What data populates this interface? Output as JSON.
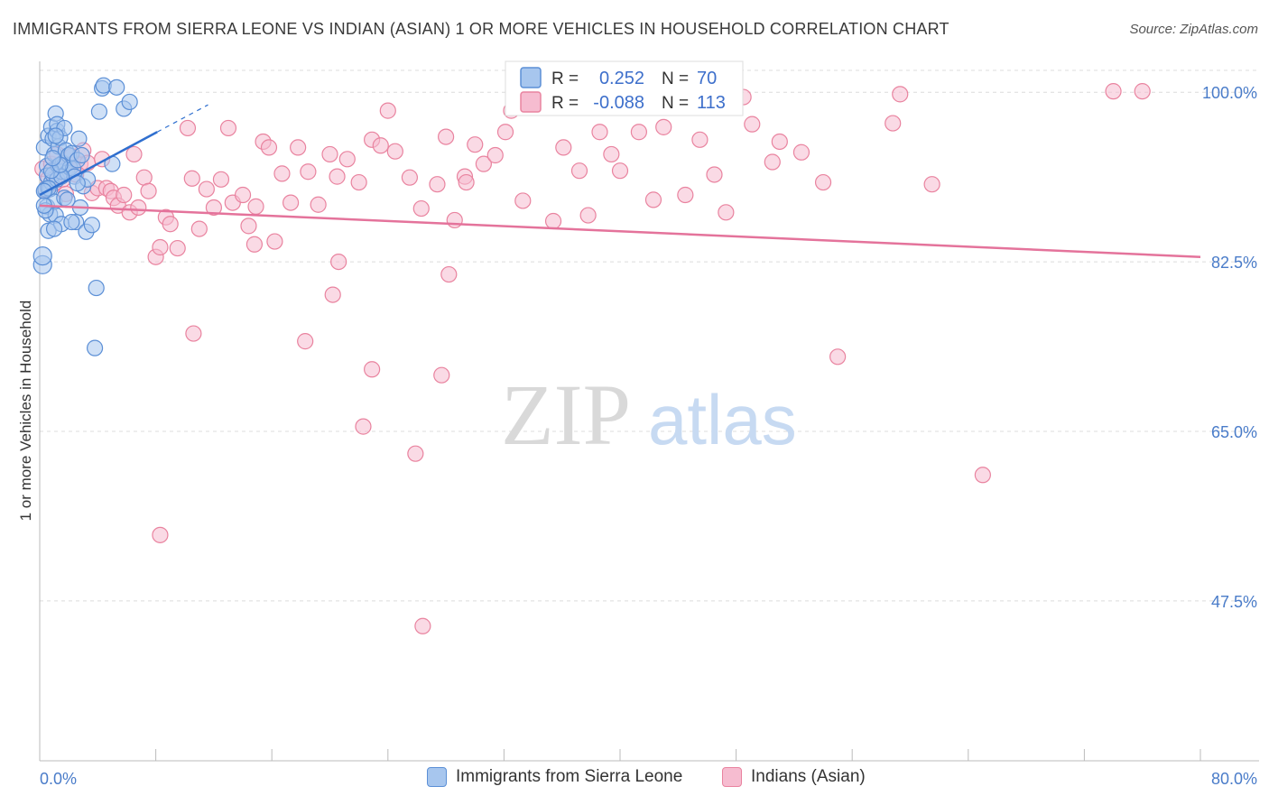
{
  "header": {
    "title": "IMMIGRANTS FROM SIERRA LEONE VS INDIAN (ASIAN) 1 OR MORE VEHICLES IN HOUSEHOLD CORRELATION CHART",
    "source": "Source: ZipAtlas.com"
  },
  "watermark": {
    "zip": "ZIP",
    "atlas": "atlas"
  },
  "colors": {
    "blue_fill": "#a7c6ee",
    "blue_stroke": "#5b8fd6",
    "blue_line": "#2f6fcf",
    "pink_fill": "#f6bcd0",
    "pink_stroke": "#e9839f",
    "pink_line": "#e4739b",
    "axis_text": "#4a7cc9"
  },
  "legend_box": {
    "rows": [
      {
        "r_label": "R =",
        "r_value": "0.252",
        "n_label": "N =",
        "n_value": "70"
      },
      {
        "r_label": "R =",
        "r_value": "-0.088",
        "n_label": "N =",
        "n_value": "113"
      }
    ]
  },
  "chart_data": {
    "type": "scatter",
    "title": "IMMIGRANTS FROM SIERRA LEONE VS INDIAN (ASIAN) 1 OR MORE VEHICLES IN HOUSEHOLD CORRELATION CHART",
    "xlabel": "",
    "ylabel": "1 or more Vehicles in Household",
    "xlim": [
      0,
      80
    ],
    "ylim": [
      31,
      103
    ],
    "x_tick_labels": [
      "0.0%",
      "80.0%"
    ],
    "y_ticks": [
      47.5,
      65.0,
      82.5,
      100.0
    ],
    "y_tick_labels": [
      "47.5%",
      "65.0%",
      "82.5%",
      "100.0%"
    ],
    "grid": true,
    "legend": [
      "Immigrants from Sierra Leone",
      "Indians (Asian)"
    ],
    "series": [
      {
        "name": "Immigrants from Sierra Leone",
        "color": "blue",
        "R": 0.252,
        "N": 70,
        "trend": {
          "x0": 0,
          "y0": 89.4,
          "x1": 8.1,
          "y1": 95.9,
          "dash_to_x": 11.6,
          "dash_to_y": 98.7
        },
        "points": [
          [
            0.2,
            82.2
          ],
          [
            0.2,
            83.1
          ],
          [
            0.3,
            94.3
          ],
          [
            0.4,
            89.8
          ],
          [
            0.4,
            90.0
          ],
          [
            0.5,
            88.2
          ],
          [
            0.5,
            92.4
          ],
          [
            0.5,
            91.4
          ],
          [
            0.6,
            85.7
          ],
          [
            0.6,
            95.5
          ],
          [
            0.7,
            87.4
          ],
          [
            0.7,
            90.0
          ],
          [
            0.8,
            96.4
          ],
          [
            0.8,
            90.7
          ],
          [
            0.9,
            91.5
          ],
          [
            0.9,
            95.2
          ],
          [
            1.0,
            88.7
          ],
          [
            1.0,
            93.6
          ],
          [
            1.1,
            87.3
          ],
          [
            1.1,
            97.8
          ],
          [
            1.2,
            91.0
          ],
          [
            1.2,
            96.0
          ],
          [
            1.3,
            92.4
          ],
          [
            1.3,
            94.4
          ],
          [
            1.4,
            95.3
          ],
          [
            1.5,
            86.4
          ],
          [
            1.5,
            91.8
          ],
          [
            1.6,
            92.7
          ],
          [
            1.7,
            89.1
          ],
          [
            1.7,
            92.5
          ],
          [
            1.8,
            94.0
          ],
          [
            1.9,
            91.7
          ],
          [
            2.0,
            93.5
          ],
          [
            2.1,
            92.2
          ],
          [
            2.2,
            93.7
          ],
          [
            2.3,
            92.1
          ],
          [
            2.4,
            91.3
          ],
          [
            2.5,
            86.6
          ],
          [
            2.6,
            93.0
          ],
          [
            2.7,
            95.2
          ],
          [
            2.8,
            88.1
          ],
          [
            2.9,
            93.5
          ],
          [
            3.0,
            90.3
          ],
          [
            3.2,
            85.6
          ],
          [
            3.3,
            91.0
          ],
          [
            3.6,
            86.3
          ],
          [
            1.2,
            96.7
          ],
          [
            1.0,
            85.9
          ],
          [
            3.8,
            73.6
          ],
          [
            3.9,
            79.8
          ],
          [
            4.1,
            98.0
          ],
          [
            4.3,
            100.4
          ],
          [
            4.4,
            100.7
          ],
          [
            5.3,
            100.5
          ],
          [
            5.8,
            98.3
          ],
          [
            6.2,
            99.0
          ],
          [
            5.0,
            92.6
          ],
          [
            1.5,
            91.3
          ],
          [
            0.6,
            90.1
          ],
          [
            2.2,
            86.6
          ],
          [
            0.8,
            91.9
          ],
          [
            1.4,
            92.5
          ],
          [
            0.3,
            89.8
          ],
          [
            0.9,
            93.2
          ],
          [
            1.7,
            96.3
          ],
          [
            2.6,
            90.6
          ],
          [
            0.4,
            87.8
          ],
          [
            0.3,
            88.3
          ],
          [
            1.9,
            88.9
          ],
          [
            1.1,
            95.5
          ]
        ]
      },
      {
        "name": "Indians (Asian)",
        "color": "pink",
        "R": -0.088,
        "N": 113,
        "trend": {
          "x0": 0,
          "y0": 88.3,
          "x1": 80,
          "y1": 83.0
        },
        "points": [
          [
            0.2,
            92.1
          ],
          [
            0.4,
            89.9
          ],
          [
            0.6,
            91.1
          ],
          [
            0.8,
            92.6
          ],
          [
            1.0,
            90.6
          ],
          [
            1.2,
            93.6
          ],
          [
            1.4,
            92.5
          ],
          [
            1.6,
            91.0
          ],
          [
            1.8,
            89.5
          ],
          [
            2.0,
            92.3
          ],
          [
            2.2,
            93.4
          ],
          [
            2.5,
            91.5
          ],
          [
            2.8,
            92.6
          ],
          [
            3.0,
            94.0
          ],
          [
            3.3,
            92.7
          ],
          [
            3.6,
            89.6
          ],
          [
            4.0,
            90.1
          ],
          [
            4.3,
            93.1
          ],
          [
            4.6,
            90.1
          ],
          [
            4.9,
            89.8
          ],
          [
            5.1,
            89.1
          ],
          [
            5.4,
            88.3
          ],
          [
            5.8,
            89.4
          ],
          [
            6.2,
            87.6
          ],
          [
            6.5,
            93.6
          ],
          [
            6.8,
            88.1
          ],
          [
            7.2,
            91.2
          ],
          [
            7.5,
            89.8
          ],
          [
            8.0,
            83.0
          ],
          [
            8.3,
            84.0
          ],
          [
            8.7,
            87.1
          ],
          [
            9.0,
            86.4
          ],
          [
            9.5,
            83.9
          ],
          [
            10.2,
            96.3
          ],
          [
            10.5,
            91.1
          ],
          [
            11.0,
            85.9
          ],
          [
            11.5,
            90.0
          ],
          [
            12.0,
            88.1
          ],
          [
            12.5,
            91.0
          ],
          [
            13.0,
            96.3
          ],
          [
            13.3,
            88.6
          ],
          [
            14.0,
            89.4
          ],
          [
            14.4,
            86.2
          ],
          [
            14.9,
            88.2
          ],
          [
            15.4,
            94.9
          ],
          [
            15.8,
            94.3
          ],
          [
            16.2,
            84.6
          ],
          [
            16.7,
            91.6
          ],
          [
            17.3,
            88.6
          ],
          [
            17.8,
            94.3
          ],
          [
            18.5,
            91.8
          ],
          [
            19.2,
            88.4
          ],
          [
            20.0,
            93.6
          ],
          [
            20.5,
            91.3
          ],
          [
            21.2,
            93.1
          ],
          [
            22.0,
            90.7
          ],
          [
            22.9,
            95.1
          ],
          [
            23.5,
            94.5
          ],
          [
            24.0,
            98.1
          ],
          [
            24.5,
            93.9
          ],
          [
            25.5,
            91.2
          ],
          [
            26.3,
            88.0
          ],
          [
            27.4,
            90.5
          ],
          [
            28.0,
            95.4
          ],
          [
            28.6,
            86.8
          ],
          [
            29.3,
            91.3
          ],
          [
            30.0,
            94.6
          ],
          [
            30.6,
            92.6
          ],
          [
            31.4,
            93.5
          ],
          [
            32.1,
            95.9
          ],
          [
            32.5,
            98.1
          ],
          [
            33.3,
            88.8
          ],
          [
            34.1,
            100.1
          ],
          [
            35.4,
            86.7
          ],
          [
            36.1,
            94.3
          ],
          [
            37.2,
            91.9
          ],
          [
            37.8,
            87.3
          ],
          [
            38.6,
            95.9
          ],
          [
            39.4,
            93.6
          ],
          [
            40.0,
            91.9
          ],
          [
            41.3,
            95.9
          ],
          [
            42.3,
            88.9
          ],
          [
            43.0,
            96.4
          ],
          [
            44.5,
            89.4
          ],
          [
            45.5,
            95.1
          ],
          [
            46.5,
            91.5
          ],
          [
            47.3,
            87.6
          ],
          [
            48.5,
            99.5
          ],
          [
            49.1,
            96.7
          ],
          [
            50.5,
            92.8
          ],
          [
            51.0,
            94.9
          ],
          [
            52.5,
            93.8
          ],
          [
            54.0,
            90.7
          ],
          [
            55.0,
            72.7
          ],
          [
            58.8,
            96.8
          ],
          [
            59.3,
            99.8
          ],
          [
            61.5,
            90.5
          ],
          [
            65.0,
            60.5
          ],
          [
            74.0,
            100.1
          ],
          [
            76.0,
            100.1
          ],
          [
            8.3,
            54.3
          ],
          [
            10.6,
            75.1
          ],
          [
            14.8,
            84.3
          ],
          [
            18.3,
            74.3
          ],
          [
            20.2,
            79.1
          ],
          [
            20.6,
            82.5
          ],
          [
            22.3,
            65.5
          ],
          [
            22.9,
            71.4
          ],
          [
            25.9,
            62.7
          ],
          [
            26.4,
            44.9
          ],
          [
            27.7,
            70.8
          ],
          [
            28.2,
            81.2
          ],
          [
            29.4,
            90.7
          ]
        ]
      }
    ]
  },
  "legend_bottom": {
    "items": [
      {
        "label": "Immigrants from Sierra Leone"
      },
      {
        "label": "Indians (Asian)"
      }
    ]
  }
}
